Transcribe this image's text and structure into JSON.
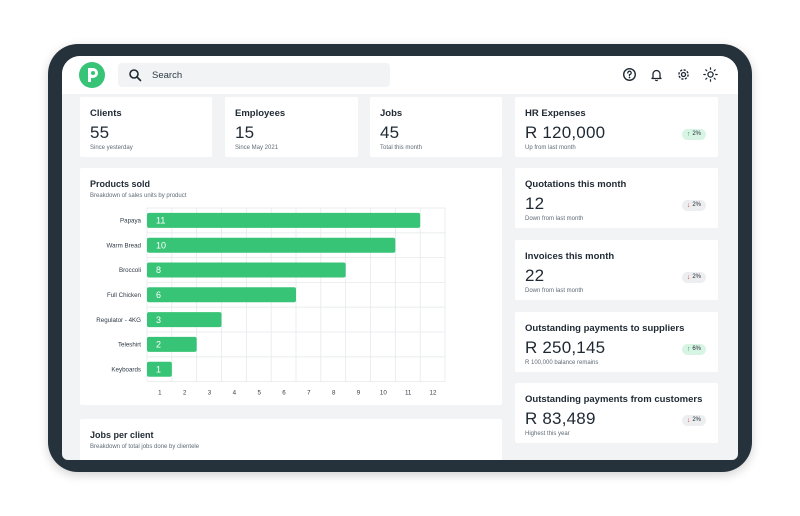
{
  "search": {
    "placeholder": "Search"
  },
  "topbar": {
    "icons": [
      "help-icon",
      "bell-icon",
      "gear-icon",
      "sun-icon"
    ]
  },
  "stats": {
    "clients": {
      "label": "Clients",
      "value": "55",
      "sub": "Since yesterday"
    },
    "employees": {
      "label": "Employees",
      "value": "15",
      "sub": "Since May 2021"
    },
    "jobs": {
      "label": "Jobs",
      "value": "45",
      "sub": "Total this month"
    },
    "hr_expenses": {
      "label": "HR Expenses",
      "value": "R 120,000",
      "sub": "Up from last month",
      "badge": "2%",
      "trend": "up"
    },
    "quotations": {
      "label": "Quotations this month",
      "value": "12",
      "sub": "Down from last month",
      "badge": "2%",
      "trend": "down"
    },
    "invoices": {
      "label": "Invoices this month",
      "value": "22",
      "sub": "Down from last month",
      "badge": "2%",
      "trend": "down"
    },
    "suppliers": {
      "label": "Outstanding payments to suppliers",
      "value": "R 250,145",
      "sub": "R 100,000 balance remains",
      "badge": "6%",
      "trend": "up"
    },
    "customers": {
      "label": "Outstanding payments from customers",
      "value": "R 83,489",
      "sub": "Highest this year",
      "badge": "2%",
      "trend": "down"
    }
  },
  "products_card": {
    "title": "Products sold",
    "subtitle": "Breakdown of sales units by product"
  },
  "jobs_card": {
    "title": "Jobs per client",
    "subtitle": "Breakdown of total jobs done by clientele"
  },
  "colors": {
    "accent": "#37c476",
    "frame": "#26323b",
    "up": "#2a9d5c",
    "down": "#e04848"
  },
  "chart_data": {
    "type": "bar",
    "orientation": "horizontal",
    "title": "Products sold",
    "subtitle": "Breakdown of sales units by product",
    "categories": [
      "Papaya",
      "Warm Bread",
      "Broccoli",
      "Full Chicken",
      "Regulator - 4KG",
      "Teleshirt",
      "Keyboards"
    ],
    "values": [
      11,
      10,
      8,
      6,
      3,
      2,
      1
    ],
    "x_ticks": [
      1,
      2,
      3,
      4,
      5,
      6,
      7,
      8,
      9,
      10,
      11,
      12
    ],
    "xlim": [
      0,
      12
    ],
    "grid": true,
    "bar_color": "#37c476"
  }
}
